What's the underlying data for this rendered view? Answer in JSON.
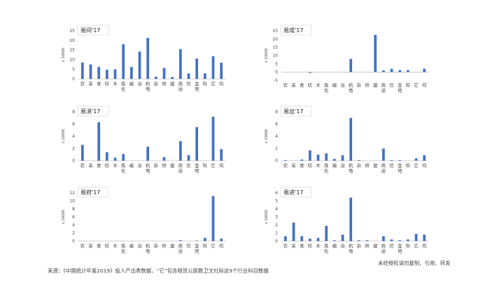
{
  "footer": {
    "source": "来源：《中国统计年鉴2019》投入产出表数据，“它”包含租赁公居教卫文社际这9个行业科目数据",
    "rights": "未经授权请勿复制、引用、转发"
  },
  "colors": {
    "bar": "#4472C4",
    "axis": "#bfbfbf"
  },
  "chart_data": [
    {
      "type": "bar",
      "title": "易间'17",
      "ylabel": "x 10000",
      "ylim": [
        0,
        25
      ],
      "yticks": [
        0,
        5,
        10,
        15,
        20,
        25
      ],
      "categories": [
        "农",
        "采",
        "食",
        "纺",
        "木",
        "炼化",
        "编",
        "冶",
        "机电",
        "杂",
        "供",
        "建",
        "商运",
        "信",
        "金地",
        "科",
        "它",
        "均"
      ],
      "values": [
        8.5,
        7.5,
        6.3,
        4.8,
        5.0,
        18.0,
        6.2,
        14.2,
        21.3,
        1.2,
        5.7,
        1.0,
        15.5,
        2.8,
        10.6,
        2.9,
        11.8,
        8.4
      ]
    },
    {
      "type": "bar",
      "title": "易成'17",
      "ylabel": "x 10000",
      "ylim": [
        -5,
        25
      ],
      "yticks": [
        -5,
        0,
        5,
        10,
        15,
        20,
        25
      ],
      "categories": [
        "农",
        "采",
        "食",
        "纺",
        "木",
        "炼化",
        "编",
        "冶",
        "机电",
        "杂",
        "供",
        "建",
        "商运",
        "信",
        "金地",
        "科",
        "它",
        "均"
      ],
      "values": [
        0,
        0,
        0,
        -0.5,
        0,
        0,
        0,
        0,
        8.0,
        0,
        0,
        22.5,
        1.0,
        2.0,
        1.2,
        1.2,
        0,
        2.0
      ]
    },
    {
      "type": "bar",
      "title": "易消'17",
      "ylabel": "x 10000",
      "ylim": [
        0,
        8
      ],
      "yticks": [
        0,
        2,
        4,
        6,
        8
      ],
      "categories": [
        "农",
        "采",
        "食",
        "纺",
        "木",
        "炼化",
        "编",
        "冶",
        "机电",
        "杂",
        "供",
        "建",
        "商运",
        "信",
        "金地",
        "科",
        "它",
        "均"
      ],
      "values": [
        2.6,
        0,
        6.3,
        1.4,
        0.5,
        1.1,
        0,
        0,
        2.3,
        0,
        0.6,
        0,
        3.2,
        0.9,
        5.5,
        0,
        7.2,
        1.9
      ]
    },
    {
      "type": "bar",
      "title": "易出'17",
      "ylabel": "x 10000",
      "ylim": [
        0,
        8
      ],
      "yticks": [
        0,
        2,
        4,
        6,
        8
      ],
      "categories": [
        "农",
        "采",
        "食",
        "纺",
        "木",
        "炼化",
        "编",
        "冶",
        "机电",
        "杂",
        "供",
        "建",
        "商运",
        "信",
        "金地",
        "科",
        "它",
        "均"
      ],
      "values": [
        0.1,
        0,
        0.2,
        1.7,
        1.0,
        1.2,
        0.3,
        0.9,
        7.0,
        0.1,
        0,
        0,
        2.0,
        0.1,
        0.1,
        0,
        0.4,
        0.9
      ]
    },
    {
      "type": "bar",
      "title": "易府'17",
      "ylabel": "x 10000",
      "ylim": [
        0,
        12
      ],
      "yticks": [
        0,
        2,
        4,
        6,
        8,
        10,
        12
      ],
      "categories": [
        "农",
        "采",
        "食",
        "纺",
        "木",
        "炼化",
        "编",
        "冶",
        "机电",
        "杂",
        "供",
        "建",
        "商运",
        "信",
        "金地",
        "科",
        "它",
        "均"
      ],
      "values": [
        0,
        0,
        0,
        0,
        0,
        0,
        0,
        0,
        0,
        0,
        0,
        0,
        0.2,
        0,
        0.1,
        0.8,
        11.2,
        0.6
      ]
    },
    {
      "type": "bar",
      "title": "易进'17",
      "ylabel": "x 10000",
      "ylim": [
        0,
        6
      ],
      "yticks": [
        0,
        1,
        2,
        3,
        4,
        5,
        6
      ],
      "categories": [
        "农",
        "采",
        "食",
        "纺",
        "木",
        "炼化",
        "编",
        "冶",
        "机电",
        "杂",
        "供",
        "建",
        "商运",
        "信",
        "金地",
        "科",
        "它",
        "均"
      ],
      "values": [
        0.6,
        2.3,
        0.6,
        0.3,
        0.4,
        1.9,
        0.1,
        0.8,
        5.4,
        0.1,
        0.1,
        0,
        0.6,
        0.2,
        0.1,
        0.2,
        0.9,
        0.8
      ]
    }
  ]
}
